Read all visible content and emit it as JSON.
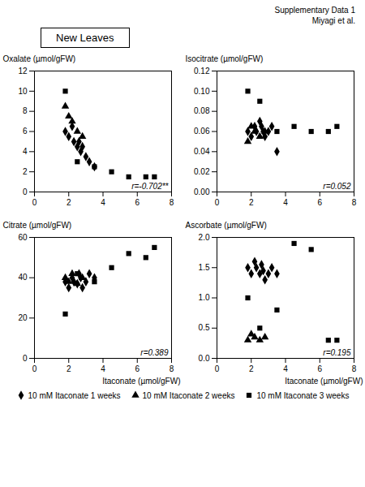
{
  "title": "New Leaves",
  "annotations": [
    "Supplementary Data 1\nMiyagi et al."
  ],
  "chart_data": [
    {
      "type": "scatter",
      "ylabel": "Oxalate (µmol/gFW)",
      "annotations": [
        "r=-0.702**"
      ],
      "xlim": [
        0,
        8
      ],
      "xticks": [
        0,
        2,
        4,
        6,
        8
      ],
      "ylim": [
        0,
        12
      ],
      "yticks": [
        0,
        2,
        4,
        6,
        8,
        10,
        12
      ],
      "series": [
        {
          "name": "10 mM Itaconate 1 weeks",
          "marker": "diamond",
          "color": "black",
          "x": [
            1.8,
            2.0,
            2.2,
            2.3,
            2.5,
            2.6,
            2.7,
            2.8,
            3.0,
            3.2,
            3.5
          ],
          "values": [
            6.0,
            5.5,
            6.5,
            5.0,
            4.5,
            5.0,
            4.0,
            4.5,
            3.5,
            3.0,
            2.5
          ]
        },
        {
          "name": "10 mM Itaconate 2 weeks",
          "marker": "triangle",
          "color": "black",
          "x": [
            1.8,
            2.0,
            2.2,
            2.5,
            2.8
          ],
          "values": [
            8.5,
            7.5,
            7.0,
            6.0,
            5.5
          ]
        },
        {
          "name": "10 mM Itaconate 3 weeks",
          "marker": "square",
          "color": "black",
          "x": [
            1.8,
            2.5,
            3.5,
            4.5,
            5.5,
            6.5,
            7.0
          ],
          "values": [
            10.0,
            3.0,
            2.5,
            2.0,
            1.5,
            1.5,
            1.5
          ]
        }
      ]
    },
    {
      "type": "scatter",
      "ylabel": "Isocitrate (µmol/gFW)",
      "annotations": [
        "r=0.052"
      ],
      "xlim": [
        0,
        8
      ],
      "xticks": [
        0,
        2,
        4,
        6,
        8
      ],
      "ylim": [
        0.0,
        0.12
      ],
      "yticks": [
        {
          "value": 0,
          "label": "0.00"
        },
        0.02,
        0.04,
        0.06,
        0.08,
        {
          "value": 0.1,
          "label": "0.10"
        },
        0.12
      ],
      "series": [
        {
          "name": "10 mM Itaconate 1 weeks",
          "marker": "diamond",
          "color": "black",
          "x": [
            1.8,
            2.0,
            2.2,
            2.3,
            2.5,
            2.6,
            2.7,
            2.8,
            3.0,
            3.2,
            3.5
          ],
          "values": [
            0.06,
            0.055,
            0.065,
            0.06,
            0.07,
            0.065,
            0.06,
            0.055,
            0.06,
            0.065,
            0.04
          ]
        },
        {
          "name": "10 mM Itaconate 2 weeks",
          "marker": "triangle",
          "color": "black",
          "x": [
            1.8,
            2.0,
            2.2,
            2.5,
            2.8
          ],
          "values": [
            0.05,
            0.065,
            0.06,
            0.055,
            0.06
          ]
        },
        {
          "name": "10 mM Itaconate 3 weeks",
          "marker": "square",
          "color": "black",
          "x": [
            1.8,
            2.5,
            3.5,
            4.5,
            5.5,
            6.5,
            7.0
          ],
          "values": [
            0.1,
            0.09,
            0.06,
            0.065,
            0.06,
            0.06,
            0.065
          ]
        }
      ]
    },
    {
      "type": "scatter",
      "xlabel": "Itaconate (µmol/gFW)",
      "ylabel": "Citrate (µmol/gFW)",
      "annotations": [
        "r=0.389"
      ],
      "xlim": [
        0,
        8
      ],
      "xticks": [
        0,
        2,
        4,
        6,
        8
      ],
      "ylim": [
        0,
        60
      ],
      "yticks": [
        0,
        20,
        40,
        60
      ],
      "series": [
        {
          "name": "10 mM Itaconate 1 weeks",
          "marker": "diamond",
          "color": "black",
          "x": [
            1.8,
            2.0,
            2.2,
            2.3,
            2.5,
            2.6,
            2.7,
            2.8,
            3.0,
            3.2,
            3.5
          ],
          "values": [
            38,
            35,
            40,
            38,
            37,
            42,
            40,
            35,
            38,
            42,
            40
          ]
        },
        {
          "name": "10 mM Itaconate 2 weeks",
          "marker": "triangle",
          "color": "black",
          "x": [
            1.8,
            2.0,
            2.2,
            2.5,
            2.8
          ],
          "values": [
            40,
            38,
            42,
            37,
            40
          ]
        },
        {
          "name": "10 mM Itaconate 3 weeks",
          "marker": "square",
          "color": "black",
          "x": [
            1.8,
            2.5,
            3.5,
            4.5,
            5.5,
            6.5,
            7.0
          ],
          "values": [
            22,
            42,
            38,
            45,
            52,
            50,
            55
          ]
        }
      ]
    },
    {
      "type": "scatter",
      "xlabel": "Itaconate (µmol/gFW)",
      "ylabel": "Ascorbate (µmol/gFW)",
      "annotations": [
        "r=0.195"
      ],
      "xlim": [
        0,
        8
      ],
      "xticks": [
        0,
        2,
        4,
        6,
        8
      ],
      "ylim": [
        0.0,
        2.0
      ],
      "yticks": [
        {
          "value": 0,
          "label": "0.0"
        },
        0.5,
        {
          "value": 1,
          "label": "1.0"
        },
        1.5,
        {
          "value": 2,
          "label": "2.0"
        }
      ],
      "series": [
        {
          "name": "10 mM Itaconate 1 weeks",
          "marker": "diamond",
          "color": "black",
          "x": [
            1.8,
            2.0,
            2.2,
            2.3,
            2.5,
            2.6,
            2.7,
            2.8,
            3.0,
            3.2,
            3.5
          ],
          "values": [
            1.5,
            1.4,
            1.6,
            1.5,
            1.4,
            1.55,
            1.45,
            1.3,
            1.4,
            1.5,
            1.4
          ]
        },
        {
          "name": "10 mM Itaconate 2 weeks",
          "marker": "triangle",
          "color": "black",
          "x": [
            1.8,
            2.0,
            2.2,
            2.5,
            2.8
          ],
          "values": [
            0.3,
            0.4,
            0.35,
            0.3,
            0.35
          ]
        },
        {
          "name": "10 mM Itaconate 3 weeks",
          "marker": "square",
          "color": "black",
          "x": [
            1.8,
            2.5,
            3.5,
            4.5,
            5.5,
            6.5,
            7.0
          ],
          "values": [
            1.0,
            0.5,
            0.8,
            1.9,
            1.8,
            0.3,
            0.3
          ]
        }
      ]
    }
  ]
}
